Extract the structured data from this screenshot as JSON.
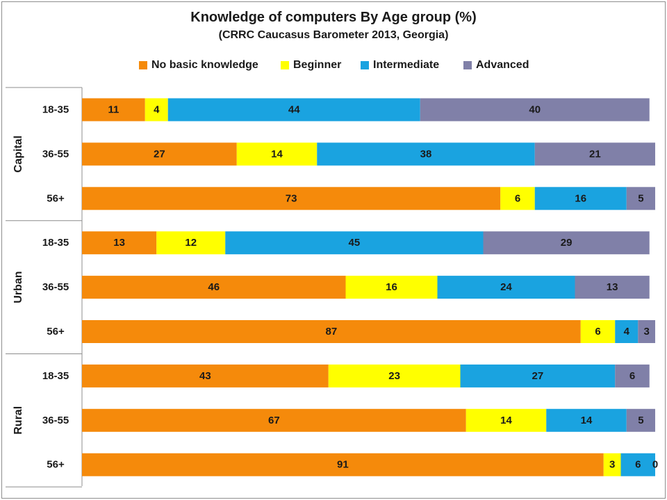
{
  "chart_data": {
    "type": "bar",
    "orientation": "horizontal",
    "stacked": true,
    "title": "Knowledge of computers By Age group (%)",
    "subtitle": "(CRRC Caucasus Barometer 2013, Georgia)",
    "legend_position": "top",
    "grid": false,
    "xlim": [
      0,
      100
    ],
    "groups": [
      {
        "label": "Capital",
        "categories": [
          "18-35",
          "36-55",
          "56+"
        ]
      },
      {
        "label": "Urban",
        "categories": [
          "18-35",
          "36-55",
          "56+"
        ]
      },
      {
        "label": "Rural",
        "categories": [
          "18-35",
          "36-55",
          "56+"
        ]
      }
    ],
    "series": [
      {
        "name": "No basic knowledge",
        "color": "#f58a0b",
        "values": [
          11,
          27,
          73,
          13,
          46,
          87,
          43,
          67,
          91
        ]
      },
      {
        "name": "Beginner",
        "color": "#ffff00",
        "values": [
          4,
          14,
          6,
          12,
          16,
          6,
          23,
          14,
          3
        ]
      },
      {
        "name": "Intermediate",
        "color": "#1aa3e0",
        "values": [
          44,
          38,
          16,
          45,
          24,
          4,
          27,
          14,
          6
        ]
      },
      {
        "name": "Advanced",
        "color": "#8080a8",
        "values": [
          40,
          21,
          5,
          29,
          13,
          3,
          6,
          5,
          0
        ]
      }
    ]
  }
}
